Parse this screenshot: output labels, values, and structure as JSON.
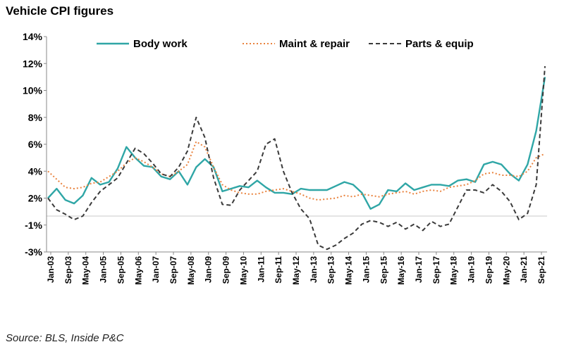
{
  "title": "Vehicle CPI figures",
  "source": "Source: BLS, Inside P&C",
  "chart_data": {
    "type": "line",
    "title": "Vehicle CPI figures",
    "xlabel": "",
    "ylabel": "",
    "ylim": [
      -3,
      14
    ],
    "y_ticks": [
      "-3%",
      "-1%",
      "2%",
      "4%",
      "6%",
      "8%",
      "10%",
      "12%",
      "14%"
    ],
    "x_tick_labels": [
      "Jan-03",
      "Sep-03",
      "May-04",
      "Jan-05",
      "Sep-05",
      "May-06",
      "Jan-07",
      "Sep-07",
      "May-08",
      "Jan-09",
      "Sep-09",
      "May-10",
      "Jan-11",
      "Sep-11",
      "May-12",
      "Jan-13",
      "Sep-13",
      "May-14",
      "Jan-15",
      "Sep-15",
      "May-16",
      "Jan-17",
      "Sep-17",
      "May-18",
      "Jan-19",
      "Sep-19",
      "May-20",
      "Jan-21",
      "Sep-21"
    ],
    "baseline": 0,
    "legend_position": "top",
    "x": [
      "Jan-03",
      "May-03",
      "Sep-03",
      "Jan-04",
      "May-04",
      "Sep-04",
      "Jan-05",
      "May-05",
      "Sep-05",
      "Jan-06",
      "May-06",
      "Sep-06",
      "Jan-07",
      "May-07",
      "Sep-07",
      "Jan-08",
      "May-08",
      "Sep-08",
      "Jan-09",
      "May-09",
      "Sep-09",
      "Jan-10",
      "May-10",
      "Sep-10",
      "Jan-11",
      "May-11",
      "Sep-11",
      "Jan-12",
      "May-12",
      "Sep-12",
      "Jan-13",
      "May-13",
      "Sep-13",
      "Jan-14",
      "May-14",
      "Sep-14",
      "Jan-15",
      "May-15",
      "Sep-15",
      "Jan-16",
      "May-16",
      "Sep-16",
      "Jan-17",
      "May-17",
      "Sep-17",
      "Jan-18",
      "May-18",
      "Sep-18",
      "Jan-19",
      "May-19",
      "Sep-19",
      "Jan-20",
      "May-20",
      "Sep-20",
      "Jan-21",
      "May-21",
      "Sep-21",
      "Jan-22"
    ],
    "series": [
      {
        "name": "Body work",
        "color": "#2fa6a6",
        "style": "solid",
        "values": [
          2.0,
          2.7,
          1.8,
          1.4,
          2.2,
          3.5,
          3.0,
          3.2,
          4.2,
          5.8,
          5.0,
          4.4,
          4.3,
          3.6,
          3.4,
          4.0,
          3.0,
          4.3,
          4.9,
          4.3,
          2.5,
          2.7,
          2.9,
          2.8,
          3.3,
          2.8,
          2.4,
          2.4,
          2.3,
          2.7,
          2.6,
          2.6,
          2.6,
          2.9,
          3.2,
          3.0,
          2.4,
          0.8,
          1.3,
          2.6,
          2.5,
          3.1,
          2.6,
          2.8,
          3.0,
          3.0,
          2.9,
          3.3,
          3.4,
          3.2,
          4.5,
          4.7,
          4.5,
          3.8,
          3.3,
          4.5,
          7.0,
          11.0
        ]
      },
      {
        "name": "Maint & repair",
        "color": "#e9823d",
        "style": "dotted",
        "values": [
          4.0,
          3.4,
          2.8,
          2.7,
          2.8,
          3.1,
          3.2,
          3.6,
          4.0,
          4.6,
          5.0,
          4.7,
          4.3,
          3.8,
          3.6,
          4.0,
          4.5,
          6.2,
          5.8,
          4.3,
          3.0,
          2.6,
          2.4,
          2.3,
          2.3,
          2.5,
          2.6,
          2.7,
          2.5,
          2.3,
          2.0,
          1.8,
          1.9,
          2.0,
          2.2,
          2.1,
          2.3,
          2.2,
          2.1,
          2.3,
          2.4,
          2.5,
          2.3,
          2.5,
          2.6,
          2.5,
          2.8,
          2.9,
          3.0,
          3.3,
          3.8,
          3.9,
          3.7,
          3.7,
          3.6,
          4.0,
          5.0,
          5.3
        ]
      },
      {
        "name": "Parts & equip",
        "color": "#3a3a3a",
        "style": "dashed",
        "values": [
          2.0,
          0.7,
          0.2,
          -0.4,
          0.0,
          1.5,
          2.5,
          3.0,
          3.5,
          4.6,
          5.7,
          5.3,
          4.6,
          3.8,
          3.6,
          4.3,
          5.5,
          8.0,
          6.5,
          3.5,
          1.3,
          1.2,
          2.6,
          3.3,
          4.0,
          6.0,
          6.4,
          4.0,
          2.4,
          0.8,
          -0.3,
          -2.5,
          -2.8,
          -2.5,
          -2.0,
          -1.6,
          -0.9,
          -0.5,
          -0.7,
          -1.1,
          -0.7,
          -1.3,
          -0.9,
          -1.4,
          -0.6,
          -1.1,
          -0.9,
          1.0,
          2.6,
          2.6,
          2.4,
          3.0,
          2.5,
          1.6,
          -0.4,
          0.3,
          3.0,
          11.8
        ]
      }
    ]
  }
}
